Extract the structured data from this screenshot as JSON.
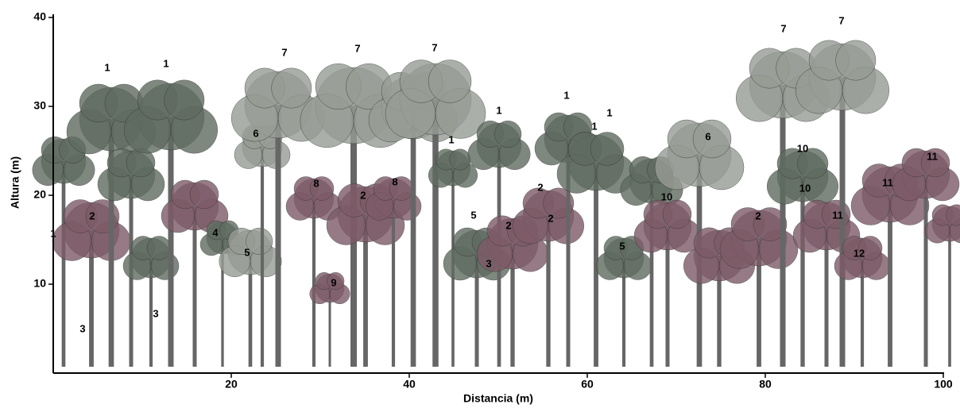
{
  "axes": {
    "y_label": "Altura (m)",
    "x_label": "Distancia (m)",
    "xticks": [
      20,
      40,
      60,
      80,
      100
    ],
    "yticks": [
      10,
      20,
      30,
      40
    ]
  },
  "tree_labels": [
    "1",
    "1",
    "1",
    "1",
    "1",
    "1",
    "1",
    "1",
    "3",
    "3",
    "3",
    "2",
    "2",
    "2",
    "2",
    "2",
    "2",
    "4",
    "5",
    "5",
    "5",
    "6",
    "6",
    "7",
    "7",
    "7",
    "7",
    "7",
    "8",
    "8",
    "9",
    "10",
    "10",
    "10",
    "11",
    "11",
    "11",
    "12"
  ]
}
